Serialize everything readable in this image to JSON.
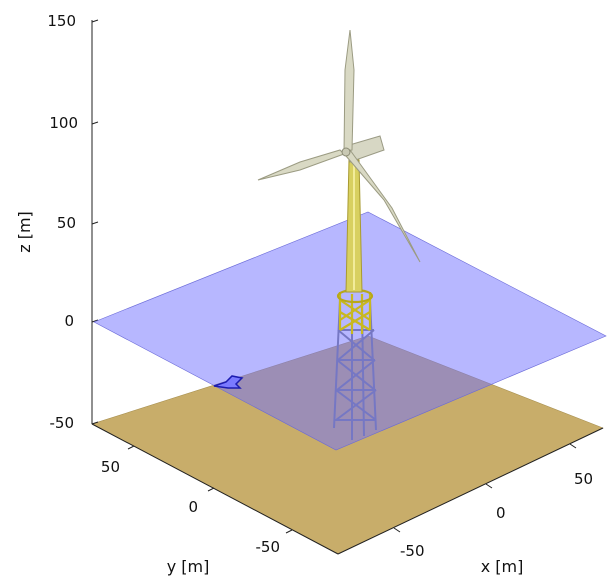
{
  "axes": {
    "z_label": "z [m]",
    "y_label": "y [m]",
    "x_label": "x [m]",
    "z_ticks": [
      "150",
      "100",
      "50",
      "0",
      "-50"
    ],
    "y_ticks": [
      "50",
      "0",
      "-50"
    ],
    "x_ticks": [
      "-50",
      "0",
      "50"
    ]
  },
  "colors": {
    "seabed": "#c8ad6a",
    "water_plane": "#8f8fff",
    "tower": "#d8d060",
    "jacket": "#e0d050",
    "jacket_lower": "#7a7f88",
    "blades": "#d9d9c4",
    "nacelle": "#d7d7c4"
  }
}
